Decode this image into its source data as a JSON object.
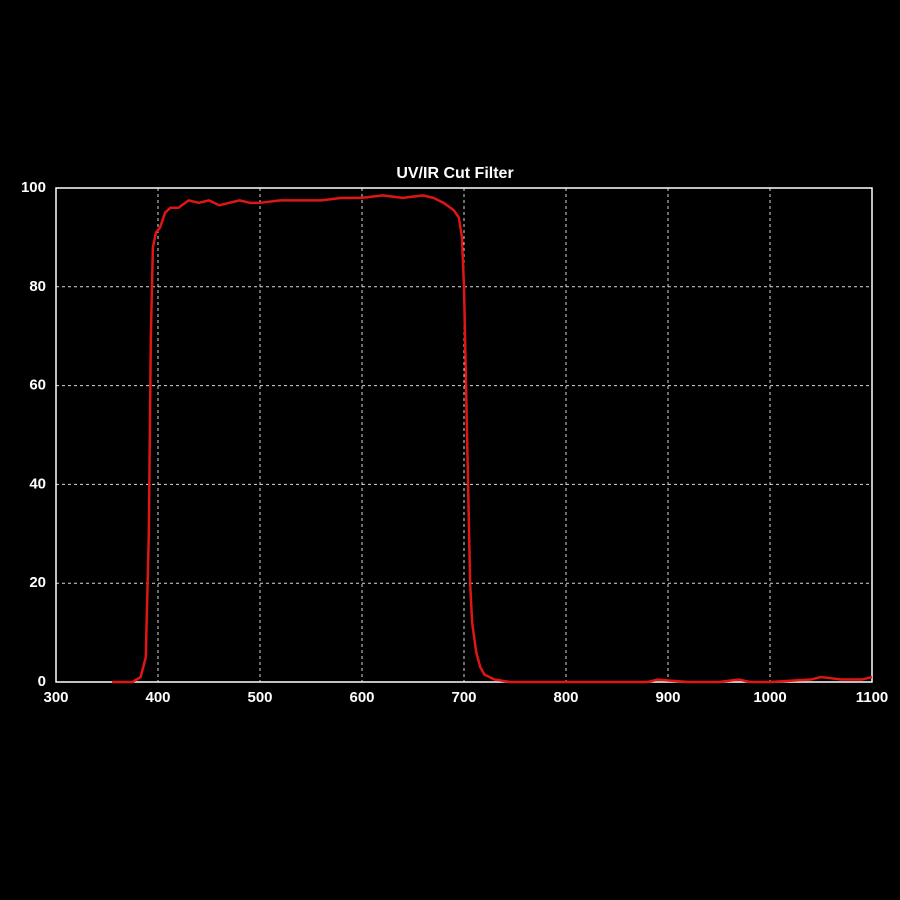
{
  "chart_data": {
    "type": "line",
    "title": "UV/IR Cut Filter",
    "x": [
      355,
      375,
      383,
      388,
      391,
      393,
      395,
      398,
      402,
      407,
      412,
      420,
      430,
      440,
      450,
      460,
      470,
      480,
      490,
      500,
      520,
      540,
      560,
      580,
      600,
      620,
      640,
      660,
      670,
      680,
      690,
      695,
      698,
      700,
      702,
      704,
      706,
      708,
      712,
      716,
      720,
      730,
      745,
      800,
      880,
      890,
      900,
      920,
      950,
      970,
      980,
      1000,
      1040,
      1050,
      1070,
      1090,
      1100
    ],
    "values": [
      0,
      0,
      1,
      5,
      30,
      70,
      88,
      91,
      92,
      95,
      96,
      96,
      97.5,
      97,
      97.5,
      96.5,
      97,
      97.5,
      97,
      97,
      97.5,
      97.5,
      97.5,
      98,
      98,
      98.5,
      98,
      98.5,
      98,
      97,
      95.5,
      94,
      90,
      80,
      60,
      40,
      20,
      12,
      6,
      3,
      1.5,
      0.5,
      0,
      0,
      0,
      0.5,
      0.3,
      0,
      0,
      0.5,
      0,
      0,
      0.5,
      1,
      0.5,
      0.5,
      1
    ],
    "color": "#e01515",
    "xlim": [
      300,
      1100
    ],
    "xticks": [
      300,
      400,
      500,
      600,
      700,
      800,
      900,
      1000,
      1100
    ],
    "ylim": [
      0,
      100
    ],
    "yticks": [
      0,
      20,
      40,
      60,
      80,
      100
    ],
    "grid": true
  }
}
